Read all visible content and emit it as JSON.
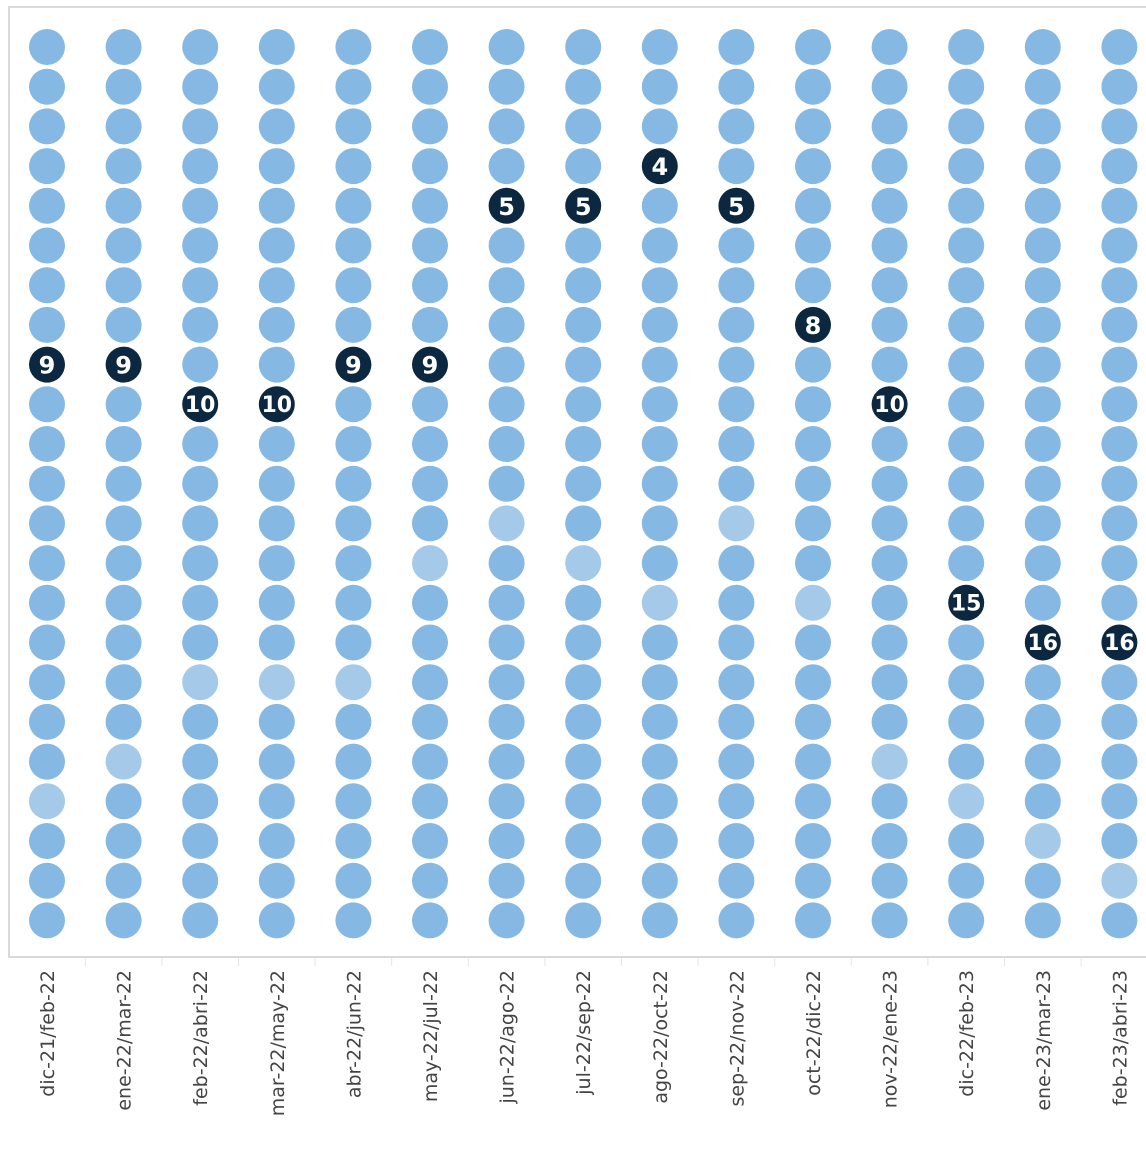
{
  "chart_data": {
    "type": "scatter",
    "title": "",
    "xlabel": "",
    "ylabel": "",
    "rows_per_column": 23,
    "categories": [
      "dic-21/feb-22",
      "ene-22/mar-22",
      "feb-22/abri-22",
      "mar-22/may-22",
      "abr-22/jun-22",
      "may-22/jul-22",
      "jun-22/ago-22",
      "jul-22/sep-22",
      "ago-22/oct-22",
      "sep-22/nov-22",
      "oct-22/dic-22",
      "nov-22/ene-23",
      "dic-22/feb-23",
      "ene-23/mar-23",
      "feb-23/abri-23"
    ],
    "highlighted_values": [
      9,
      9,
      10,
      10,
      9,
      9,
      5,
      5,
      4,
      5,
      8,
      10,
      15,
      16,
      16
    ],
    "light_values": [
      20,
      19,
      17,
      17,
      17,
      14,
      13,
      14,
      15,
      13,
      15,
      19,
      20,
      21,
      22
    ],
    "colors": {
      "dot": "#85b9e3",
      "dot_light": "#a5cae9",
      "highlight": "#0c2840",
      "highlight_text": "#ffffff",
      "frame": "#d9d9d9",
      "tick_text": "#444444"
    },
    "grid": false,
    "legend": "none"
  }
}
